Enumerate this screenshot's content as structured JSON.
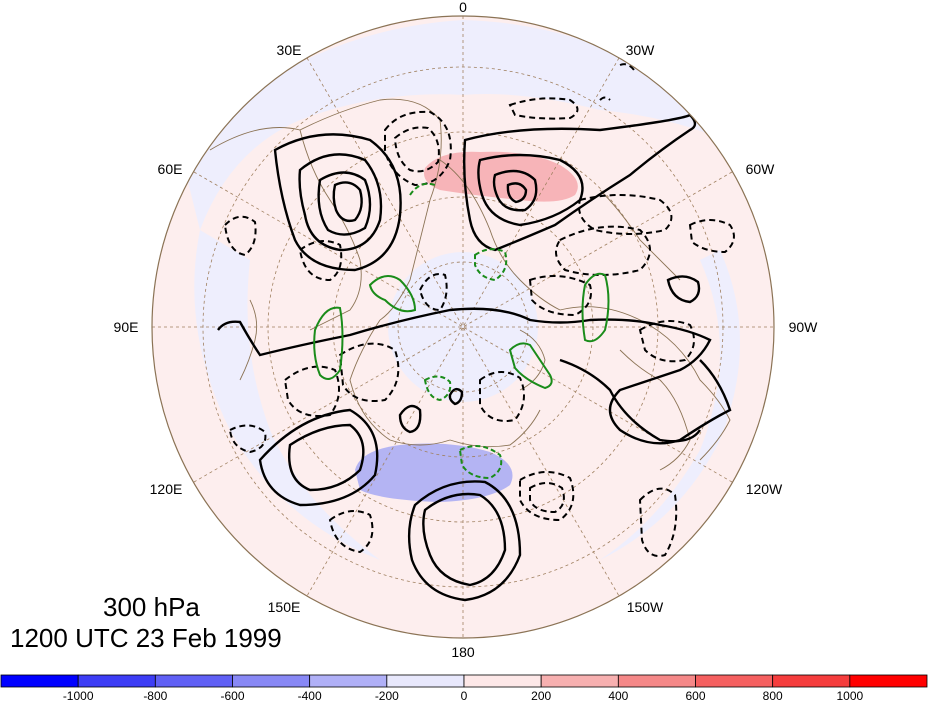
{
  "map": {
    "projection": "north-polar-stereographic",
    "longitude_labels": [
      {
        "id": "lon-0",
        "text": "0"
      },
      {
        "id": "lon-30w",
        "text": "30W"
      },
      {
        "id": "lon-60w",
        "text": "60W"
      },
      {
        "id": "lon-90w",
        "text": "90W"
      },
      {
        "id": "lon-120w",
        "text": "120W"
      },
      {
        "id": "lon-150w",
        "text": "150W"
      },
      {
        "id": "lon-180",
        "text": "180"
      },
      {
        "id": "lon-150e",
        "text": "150E"
      },
      {
        "id": "lon-120e",
        "text": "120E"
      },
      {
        "id": "lon-90e",
        "text": "90E"
      },
      {
        "id": "lon-60e",
        "text": "60E"
      },
      {
        "id": "lon-30e",
        "text": "30E"
      }
    ],
    "colors": {
      "positive_contour": "#000000",
      "negative_contour": "#000000",
      "green_contour": "#1a8c1a",
      "coastline": "#8b7355",
      "graticule": "#a08060"
    }
  },
  "titles": {
    "level": "300 hPa",
    "datetime": "1200 UTC 23 Feb 1999"
  },
  "colorbar": {
    "labels": [
      "-1000",
      "-800",
      "-600",
      "-400",
      "-200",
      "0",
      "200",
      "400",
      "600",
      "800",
      "1000"
    ],
    "colors": [
      "#0000ff",
      "#3d3df5",
      "#6060f5",
      "#8888f5",
      "#b0b0f7",
      "#e8e8fc",
      "#fde8e8",
      "#f7b0b0",
      "#f58888",
      "#f56060",
      "#f53d3d",
      "#ff0000"
    ]
  }
}
